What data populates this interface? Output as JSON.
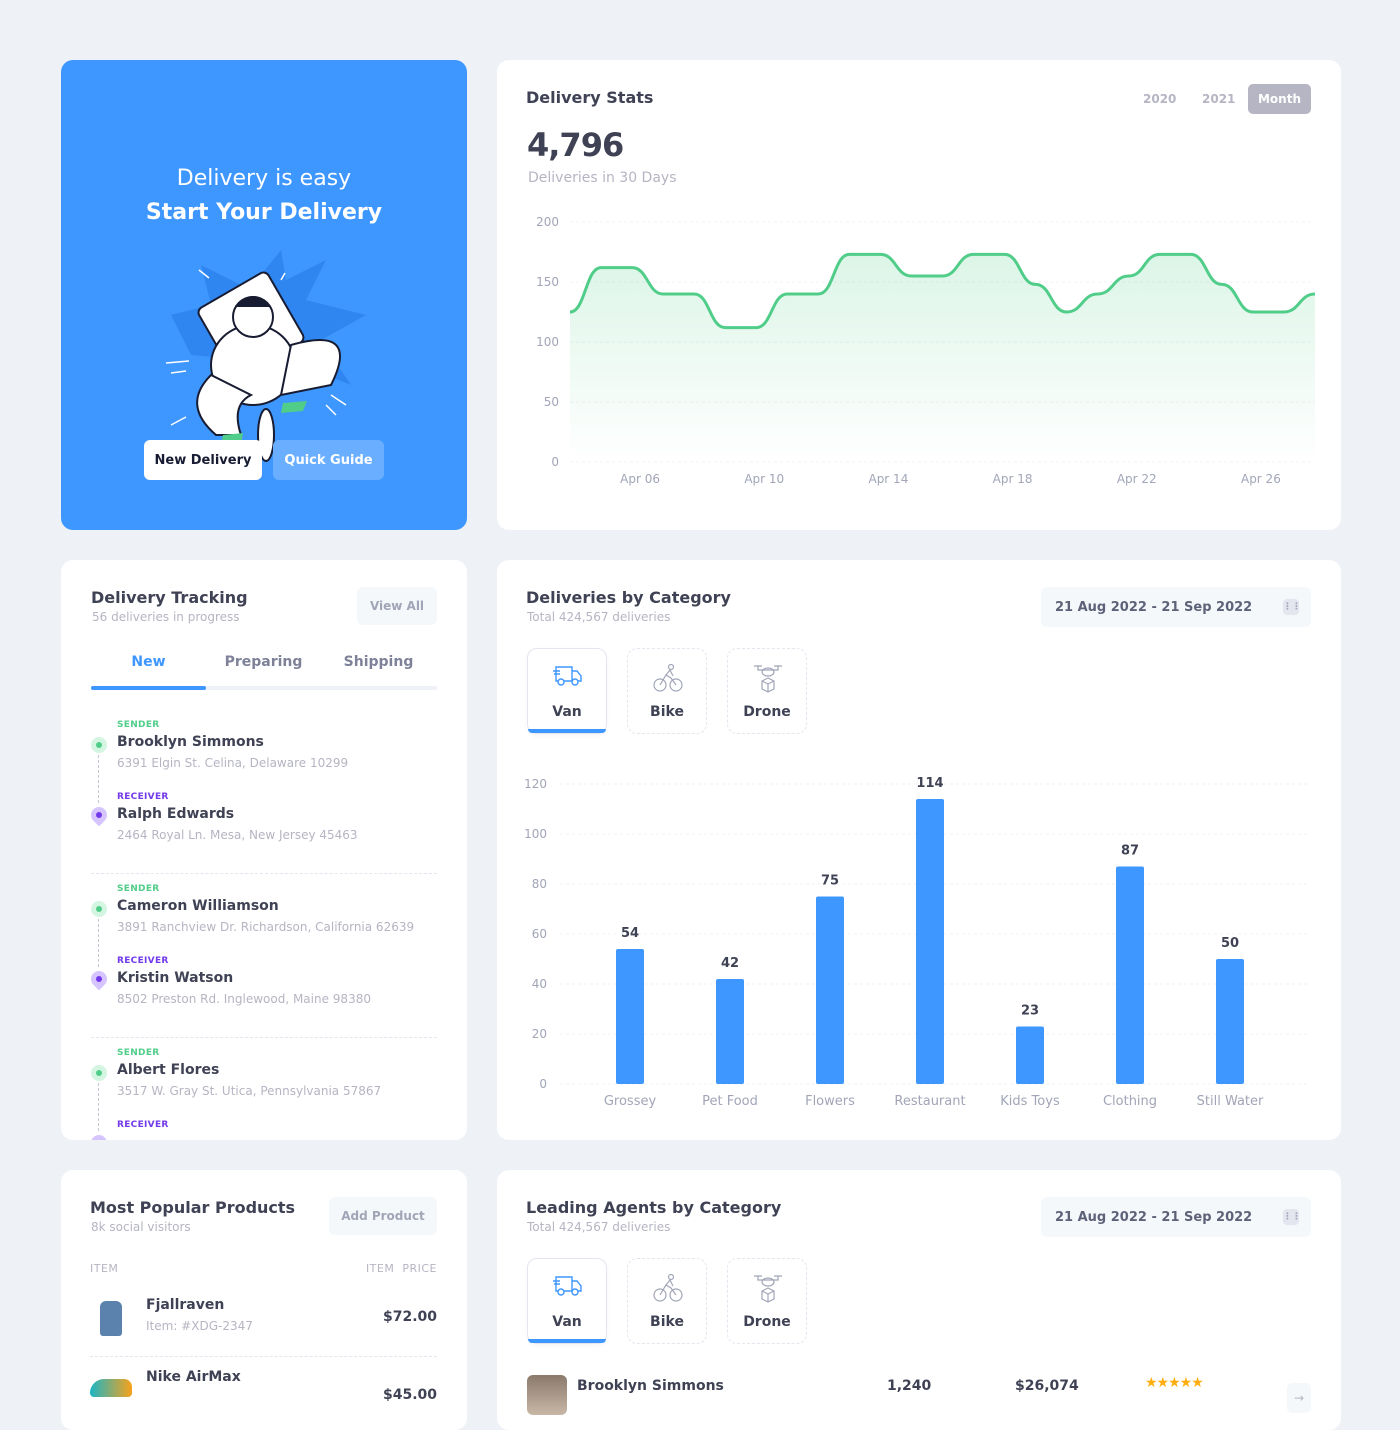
{
  "hero": {
    "line1": "Delivery is easy",
    "line2": "Start Your Delivery",
    "new_delivery": "New Delivery",
    "quick_guide": "Quick Guide",
    "accent": "#3e97ff"
  },
  "stats": {
    "title": "Delivery Stats",
    "filters": [
      "2020",
      "2021",
      "Month"
    ],
    "active_filter": "Month",
    "total": "4,796",
    "total_label": "Deliveries in 30 Days"
  },
  "tracking": {
    "title": "Delivery Tracking",
    "subtitle": "56 deliveries in progress",
    "view_all": "View All",
    "tabs": [
      "New",
      "Preparing",
      "Shipping"
    ],
    "active_tab": "New",
    "items": [
      {
        "sender_label": "SENDER",
        "sender": "Brooklyn Simmons",
        "sender_addr": "6391 Elgin St. Celina, Delaware 10299",
        "receiver_label": "RECEIVER",
        "receiver": "Ralph Edwards",
        "receiver_addr": "2464 Royal Ln. Mesa, New Jersey 45463"
      },
      {
        "sender_label": "SENDER",
        "sender": "Cameron Williamson",
        "sender_addr": "3891 Ranchview Dr. Richardson, California 62639",
        "receiver_label": "RECEIVER",
        "receiver": "Kristin Watson",
        "receiver_addr": "8502 Preston Rd. Inglewood, Maine 98380"
      },
      {
        "sender_label": "SENDER",
        "sender": "Albert Flores",
        "sender_addr": "3517 W. Gray St. Utica, Pennsylvania 57867",
        "receiver_label": "RECEIVER"
      }
    ]
  },
  "category": {
    "title": "Deliveries by Category",
    "subtitle": "Total 424,567 deliveries",
    "date_range": "21 Aug 2022 - 21 Sep 2022",
    "vehicle_tabs": [
      "Van",
      "Bike",
      "Drone"
    ],
    "active_tab": "Van"
  },
  "products": {
    "title": "Most Popular Products",
    "subtitle": "8k social visitors",
    "add_button": "Add Product",
    "col_item": "ITEM",
    "col_price": "ITEM  PRICE",
    "rows": [
      {
        "name": "Fjallraven",
        "id": "Item: #XDG-2347",
        "price": "$72.00"
      },
      {
        "name": "Nike AirMax",
        "price": "$45.00"
      }
    ]
  },
  "agents": {
    "title": "Leading Agents by Category",
    "subtitle": "Total 424,567 deliveries",
    "date_range": "21 Aug 2022 - 21 Sep 2022",
    "vehicle_tabs": [
      "Van",
      "Bike",
      "Drone"
    ],
    "active_tab": "Van",
    "rows": [
      {
        "name": "Brooklyn Simmons",
        "deliveries": "1,240",
        "earnings": "$26,074",
        "rating": 5
      }
    ]
  },
  "chart_data": [
    {
      "type": "area",
      "ylim": [
        0,
        200
      ],
      "yticks": [
        0,
        50,
        100,
        150,
        200
      ],
      "grid": true,
      "color": "#50cd89",
      "x": [
        "Apr 04",
        "Apr 05",
        "Apr 06",
        "Apr 07",
        "Apr 08",
        "Apr 09",
        "Apr 10",
        "Apr 11",
        "Apr 12",
        "Apr 13",
        "Apr 14",
        "Apr 15",
        "Apr 16",
        "Apr 17",
        "Apr 18",
        "Apr 19",
        "Apr 20",
        "Apr 21",
        "Apr 22",
        "Apr 23",
        "Apr 24",
        "Apr 25",
        "Apr 26",
        "Apr 27",
        "Apr 28"
      ],
      "values": [
        125,
        162,
        162,
        140,
        140,
        112,
        112,
        140,
        140,
        173,
        173,
        155,
        155,
        173,
        173,
        148,
        125,
        140,
        155,
        173,
        173,
        148,
        125,
        125,
        140
      ],
      "xtick_labels": [
        "Apr 06",
        "Apr 10",
        "Apr  14",
        "Apr 18",
        "Apr 22",
        "Apr 26"
      ]
    },
    {
      "type": "bar",
      "ylim": [
        0,
        120
      ],
      "yticks": [
        0,
        20,
        40,
        60,
        80,
        100,
        120
      ],
      "grid": true,
      "color": "#3e97ff",
      "categories": [
        "Grossey",
        "Pet Food",
        "Flowers",
        "Restaurant",
        "Kids Toys",
        "Clothing",
        "Still Water"
      ],
      "values": [
        54,
        42,
        75,
        114,
        23,
        87,
        50
      ]
    }
  ]
}
